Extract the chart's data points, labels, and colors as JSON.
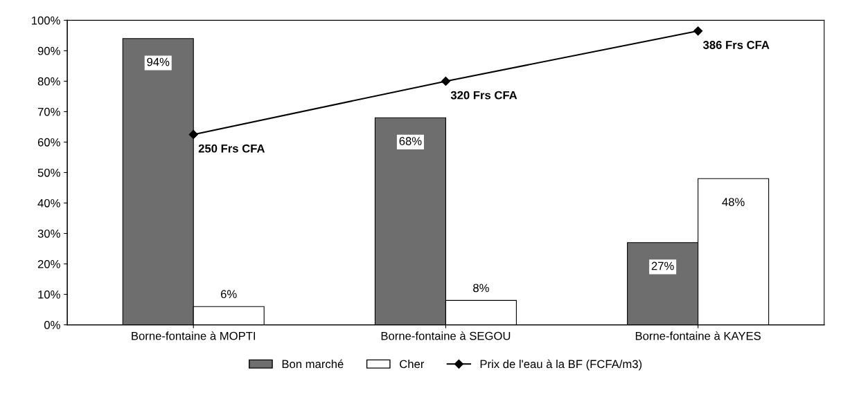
{
  "chart_data": {
    "type": "bar",
    "categories": [
      "Borne-fontaine à MOPTI",
      "Borne-fontaine à SEGOU",
      "Borne-fontaine à KAYES"
    ],
    "series": [
      {
        "name": "Bon marché",
        "color": "#6e6e6e",
        "values": [
          94,
          68,
          27
        ],
        "value_labels": [
          "94%",
          "68%",
          "27%"
        ]
      },
      {
        "name": "Cher",
        "color": "#ffffff",
        "values": [
          6,
          8,
          48
        ],
        "value_labels": [
          "6%",
          "8%",
          "48%"
        ]
      },
      {
        "name": "Prix de l'eau à la BF (FCFA/m3)",
        "type": "line",
        "axis": "y2",
        "color": "#000000",
        "marker": "diamond",
        "values": [
          250,
          320,
          386
        ],
        "value_labels": [
          "250 Frs CFA",
          "320 Frs CFA",
          "386 Frs CFA"
        ]
      }
    ],
    "ylim": [
      0,
      100
    ],
    "yticks": [
      {
        "value": 0,
        "label": "0%"
      },
      {
        "value": 10,
        "label": "10%"
      },
      {
        "value": 20,
        "label": "20%"
      },
      {
        "value": 30,
        "label": "30%"
      },
      {
        "value": 40,
        "label": "40%"
      },
      {
        "value": 50,
        "label": "50%"
      },
      {
        "value": 60,
        "label": "60%"
      },
      {
        "value": 70,
        "label": "70%"
      },
      {
        "value": 80,
        "label": "80%"
      },
      {
        "value": 90,
        "label": "90%"
      },
      {
        "value": 100,
        "label": "100%"
      }
    ],
    "y2lim": [
      0,
      400
    ],
    "tick_labels": [
      "x",
      "y"
    ],
    "grid": false,
    "legend": "bottom"
  }
}
